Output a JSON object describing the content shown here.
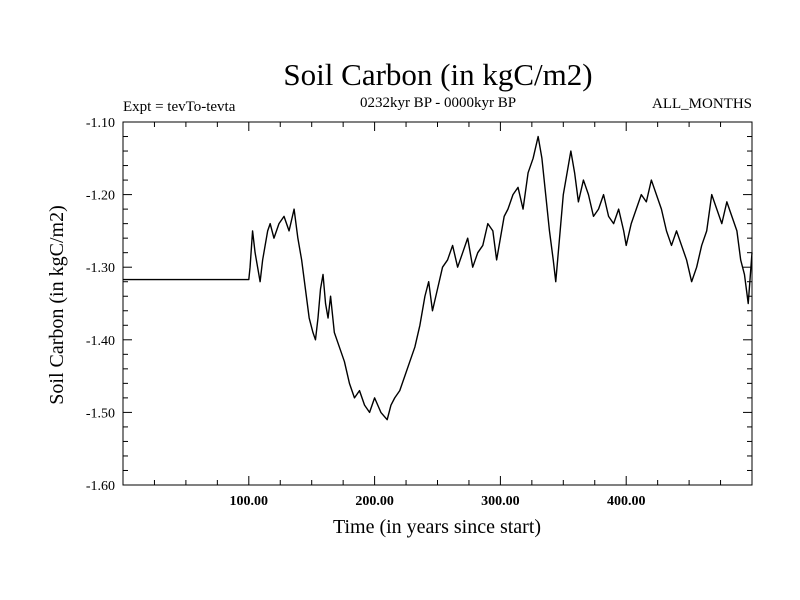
{
  "chart_data": {
    "type": "line",
    "title": "Soil Carbon (in kgC/m2)",
    "subtitle": "0232kyr BP - 0000kyr BP",
    "left_label": "Expt = tevTo-tevta",
    "right_label": "ALL_MONTHS",
    "xlabel": "Time (in years since start)",
    "ylabel": "Soil Carbon (in kgC/m2)",
    "xlim": [
      0,
      500
    ],
    "ylim": [
      -1.6,
      -1.1
    ],
    "x_ticks": [
      100,
      200,
      300,
      400
    ],
    "x_tick_labels": [
      "100.00",
      "200.00",
      "300.00",
      "400.00"
    ],
    "y_ticks": [
      -1.6,
      -1.5,
      -1.4,
      -1.3,
      -1.2,
      -1.1
    ],
    "y_tick_labels": [
      "-1.60",
      "-1.50",
      "-1.40",
      "-1.30",
      "-1.20",
      "-1.10"
    ],
    "grid": false,
    "line_color": "#000000",
    "series": [
      {
        "x": [
          0,
          100,
          101,
          103,
          105,
          107,
          109,
          111,
          113,
          115,
          117,
          120,
          124,
          128,
          132,
          136,
          139,
          142,
          145,
          148,
          151,
          153,
          155,
          157,
          159,
          161,
          163,
          165,
          168,
          172,
          176,
          180,
          184,
          188,
          192,
          196,
          200,
          205,
          210,
          213,
          216,
          220,
          224,
          228,
          232,
          236,
          240,
          243,
          246,
          250,
          254,
          258,
          262,
          266,
          270,
          274,
          278,
          282,
          286,
          290,
          294,
          297,
          300,
          303,
          306,
          310,
          314,
          318,
          322,
          326,
          330,
          333,
          336,
          339,
          342,
          344,
          346,
          348,
          350,
          353,
          356,
          359,
          362,
          366,
          370,
          374,
          378,
          382,
          386,
          390,
          394,
          398,
          400,
          404,
          408,
          412,
          416,
          420,
          424,
          428,
          432,
          436,
          440,
          444,
          448,
          452,
          456,
          460,
          464,
          468,
          472,
          476,
          480,
          484,
          488,
          491,
          494,
          497,
          500
        ],
        "y": [
          -1.317,
          -1.317,
          -1.3,
          -1.25,
          -1.28,
          -1.3,
          -1.32,
          -1.29,
          -1.27,
          -1.25,
          -1.24,
          -1.26,
          -1.24,
          -1.23,
          -1.25,
          -1.22,
          -1.26,
          -1.29,
          -1.33,
          -1.37,
          -1.39,
          -1.4,
          -1.37,
          -1.33,
          -1.31,
          -1.35,
          -1.37,
          -1.34,
          -1.39,
          -1.41,
          -1.43,
          -1.46,
          -1.48,
          -1.47,
          -1.49,
          -1.5,
          -1.48,
          -1.5,
          -1.51,
          -1.49,
          -1.48,
          -1.47,
          -1.45,
          -1.43,
          -1.41,
          -1.38,
          -1.34,
          -1.32,
          -1.36,
          -1.33,
          -1.3,
          -1.29,
          -1.27,
          -1.3,
          -1.28,
          -1.26,
          -1.3,
          -1.28,
          -1.27,
          -1.24,
          -1.25,
          -1.29,
          -1.26,
          -1.23,
          -1.22,
          -1.2,
          -1.19,
          -1.22,
          -1.17,
          -1.15,
          -1.12,
          -1.15,
          -1.2,
          -1.25,
          -1.29,
          -1.32,
          -1.28,
          -1.24,
          -1.2,
          -1.17,
          -1.14,
          -1.17,
          -1.21,
          -1.18,
          -1.2,
          -1.23,
          -1.22,
          -1.2,
          -1.23,
          -1.24,
          -1.22,
          -1.25,
          -1.27,
          -1.24,
          -1.22,
          -1.2,
          -1.21,
          -1.18,
          -1.2,
          -1.22,
          -1.25,
          -1.27,
          -1.25,
          -1.27,
          -1.29,
          -1.32,
          -1.3,
          -1.27,
          -1.25,
          -1.2,
          -1.22,
          -1.24,
          -1.21,
          -1.23,
          -1.25,
          -1.29,
          -1.31,
          -1.35,
          -1.28
        ]
      }
    ]
  }
}
